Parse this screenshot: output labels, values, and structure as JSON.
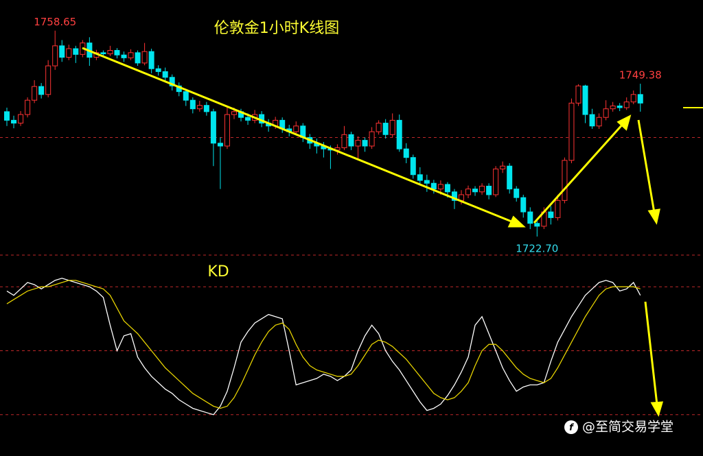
{
  "watermark": "@至简交易学堂",
  "chart_data": [
    {
      "type": "candlestick",
      "title": "伦敦金1小时K线图",
      "up_color": "#ff3333",
      "down_color": "#00e5ee",
      "ylim": [
        1719.7,
        1764.0
      ],
      "yticks": [
        1740
      ],
      "grid": true,
      "open": [
        1744.5,
        1743.0,
        1742.5,
        1744.0,
        1746.5,
        1748.9,
        1747.5,
        1752.5,
        1756.0,
        1754.0,
        1755.5,
        1754.5,
        1756.5,
        1754.0,
        1754.8,
        1754.6,
        1755.2,
        1754.4,
        1753.9,
        1754.8,
        1753.0,
        1755.0,
        1752.0,
        1751.5,
        1750.5,
        1749.0,
        1748.0,
        1746.5,
        1745.0,
        1745.6,
        1744.5,
        1739.0,
        1738.5,
        1744.0,
        1744.5,
        1743.5,
        1743.0,
        1744.0,
        1742.5,
        1742.0,
        1743.0,
        1741.5,
        1741.0,
        1742.0,
        1740.0,
        1739.0,
        1738.5,
        1738.0,
        1737.8,
        1738.2,
        1740.5,
        1738.5,
        1739.5,
        1738.5,
        1741.0,
        1742.5,
        1740.5,
        1743.0,
        1738.0,
        1736.5,
        1733.5,
        1732.5,
        1732.0,
        1731.0,
        1731.8,
        1730.5,
        1729.0,
        1730.0,
        1731.0,
        1730.5,
        1731.5,
        1730.0,
        1734.5,
        1735.0,
        1731.0,
        1729.5,
        1727.0,
        1725.0,
        1724.5,
        1727.0,
        1726.0,
        1729.0,
        1736.0,
        1746.0,
        1749.0,
        1744.0,
        1742.0,
        1743.5,
        1745.0,
        1745.5,
        1745.2,
        1746.2,
        1747.5
      ],
      "high": [
        1745.2,
        1743.8,
        1744.6,
        1747.0,
        1750.0,
        1749.5,
        1753.5,
        1758.65,
        1757.0,
        1756.2,
        1756.0,
        1757.0,
        1757.5,
        1755.3,
        1755.2,
        1756.0,
        1755.6,
        1755.0,
        1755.4,
        1755.2,
        1756.5,
        1755.5,
        1752.6,
        1752.2,
        1751.0,
        1749.6,
        1748.5,
        1747.0,
        1746.4,
        1746.2,
        1745.0,
        1740.0,
        1745.5,
        1745.2,
        1745.0,
        1744.2,
        1744.8,
        1744.6,
        1743.2,
        1743.6,
        1743.5,
        1742.2,
        1742.8,
        1742.5,
        1740.6,
        1739.8,
        1739.2,
        1738.6,
        1738.8,
        1742.0,
        1741.0,
        1740.2,
        1740.0,
        1741.8,
        1743.0,
        1743.2,
        1744.2,
        1744.0,
        1739.0,
        1737.0,
        1734.8,
        1733.5,
        1732.6,
        1732.5,
        1732.2,
        1731.0,
        1730.8,
        1731.6,
        1731.5,
        1732.0,
        1732.0,
        1735.0,
        1735.8,
        1735.5,
        1731.5,
        1730.0,
        1727.8,
        1725.8,
        1727.8,
        1728.0,
        1730.0,
        1736.5,
        1746.8,
        1749.3,
        1749.2,
        1745.0,
        1744.2,
        1746.5,
        1746.2,
        1746.0,
        1747.0,
        1748.2,
        1749.38
      ],
      "low": [
        1742.0,
        1741.6,
        1742.0,
        1743.5,
        1746.0,
        1746.8,
        1747.0,
        1751.8,
        1753.2,
        1753.5,
        1753.0,
        1754.0,
        1752.5,
        1753.5,
        1754.0,
        1754.2,
        1753.8,
        1753.2,
        1753.5,
        1752.5,
        1752.6,
        1751.2,
        1750.8,
        1749.8,
        1748.2,
        1747.2,
        1745.5,
        1744.2,
        1744.5,
        1743.8,
        1735.0,
        1731.0,
        1738.0,
        1743.2,
        1742.8,
        1742.2,
        1742.5,
        1741.8,
        1741.0,
        1741.5,
        1740.8,
        1740.2,
        1740.5,
        1739.2,
        1738.0,
        1737.2,
        1736.5,
        1734.5,
        1737.0,
        1737.8,
        1737.8,
        1736.0,
        1737.5,
        1738.0,
        1740.5,
        1739.8,
        1740.0,
        1737.5,
        1735.5,
        1732.8,
        1731.8,
        1730.5,
        1730.2,
        1730.0,
        1729.5,
        1727.5,
        1728.3,
        1729.4,
        1729.8,
        1730.0,
        1729.2,
        1729.6,
        1733.8,
        1730.2,
        1728.8,
        1726.0,
        1724.0,
        1722.7,
        1724.0,
        1724.8,
        1725.5,
        1728.5,
        1735.5,
        1745.5,
        1742.5,
        1741.5,
        1741.5,
        1743.0,
        1744.5,
        1744.6,
        1744.8,
        1745.8,
        1744.5
      ],
      "close": [
        1743.0,
        1742.5,
        1744.0,
        1746.5,
        1748.9,
        1747.5,
        1752.5,
        1756.0,
        1754.0,
        1755.5,
        1754.5,
        1756.5,
        1754.0,
        1754.8,
        1754.6,
        1755.2,
        1754.4,
        1753.9,
        1754.8,
        1753.0,
        1755.0,
        1752.0,
        1751.5,
        1750.5,
        1749.0,
        1748.0,
        1746.5,
        1745.0,
        1745.6,
        1744.5,
        1739.0,
        1738.5,
        1744.0,
        1744.5,
        1743.5,
        1743.0,
        1744.0,
        1742.5,
        1742.0,
        1743.0,
        1741.5,
        1741.0,
        1742.0,
        1740.0,
        1739.0,
        1738.5,
        1738.0,
        1737.8,
        1738.2,
        1740.5,
        1738.5,
        1739.5,
        1738.5,
        1741.0,
        1742.5,
        1740.5,
        1743.0,
        1738.0,
        1736.5,
        1733.5,
        1732.5,
        1732.0,
        1731.0,
        1731.8,
        1730.5,
        1729.0,
        1730.0,
        1731.0,
        1730.5,
        1731.5,
        1730.0,
        1734.5,
        1735.0,
        1731.0,
        1729.5,
        1727.0,
        1725.0,
        1724.5,
        1727.0,
        1726.0,
        1729.0,
        1736.0,
        1746.0,
        1749.0,
        1744.0,
        1742.0,
        1743.5,
        1745.0,
        1745.5,
        1745.2,
        1746.2,
        1747.5,
        1746.0
      ],
      "annotations": [
        {
          "value": 1758.65,
          "label": "1758.65"
        },
        {
          "value": 1749.38,
          "label": "1749.38"
        },
        {
          "value": 1722.7,
          "label": "1722.70"
        }
      ]
    },
    {
      "type": "line",
      "title": "KD",
      "ylim": [
        0,
        100
      ],
      "yticks": [
        20,
        50,
        80
      ],
      "grid": true,
      "series": [
        {
          "color": "#ffffff",
          "values": [
            78,
            76,
            79,
            82,
            81,
            79,
            81,
            83,
            84,
            83,
            82,
            81,
            80,
            78,
            75,
            62,
            50,
            57,
            58,
            47,
            42,
            38,
            35,
            32,
            30,
            27,
            25,
            23,
            22,
            21,
            20,
            24,
            31,
            42,
            54,
            59,
            63,
            65,
            67,
            66,
            65,
            50,
            34,
            35,
            36,
            37,
            39,
            38,
            36,
            38,
            41,
            50,
            57,
            62,
            58,
            50,
            45,
            41,
            36,
            31,
            26,
            22,
            23,
            25,
            29,
            34,
            40,
            47,
            62,
            66,
            58,
            50,
            42,
            36,
            31,
            33,
            34,
            34,
            35,
            45,
            54,
            60,
            66,
            71,
            76,
            79,
            82,
            83,
            82,
            78,
            79,
            82,
            76
          ]
        },
        {
          "color": "#e6d200",
          "values": [
            72,
            74,
            76,
            78,
            79,
            80,
            80,
            81,
            82,
            83,
            83,
            82,
            81,
            80,
            79,
            76,
            70,
            64,
            61,
            58,
            54,
            50,
            46,
            42,
            39,
            36,
            33,
            30,
            28,
            26,
            24,
            23,
            24,
            28,
            34,
            41,
            48,
            54,
            59,
            62,
            63,
            60,
            53,
            47,
            43,
            41,
            40,
            39,
            38,
            38,
            39,
            43,
            48,
            53,
            55,
            54,
            52,
            49,
            46,
            42,
            38,
            34,
            30,
            28,
            27,
            28,
            31,
            35,
            43,
            50,
            53,
            53,
            50,
            46,
            42,
            39,
            37,
            36,
            35,
            37,
            42,
            48,
            54,
            60,
            66,
            71,
            76,
            79,
            80,
            80,
            80,
            80,
            79
          ]
        }
      ]
    }
  ]
}
